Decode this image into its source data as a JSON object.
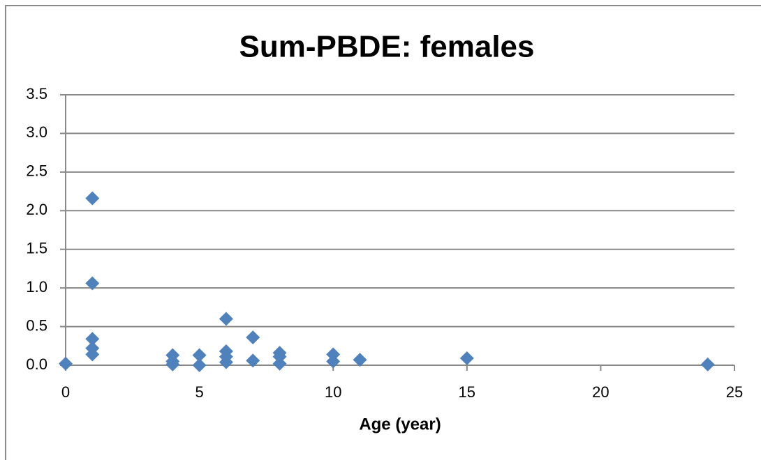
{
  "chart_data": {
    "type": "scatter",
    "title": "Sum-PBDE: females",
    "x_label": "Age (year)",
    "color": "#4f81bd",
    "grid": true,
    "x": [
      0,
      1,
      1,
      1,
      1,
      1,
      4,
      4,
      4,
      5,
      5,
      6,
      6,
      6,
      6,
      7,
      7,
      8,
      8,
      8,
      10,
      10,
      11,
      15,
      24
    ],
    "values": [
      0.02,
      2.16,
      1.06,
      0.34,
      0.22,
      0.14,
      0.13,
      0.05,
      0.01,
      0.13,
      0.0,
      0.6,
      0.18,
      0.11,
      0.04,
      0.36,
      0.06,
      0.16,
      0.11,
      0.02,
      0.14,
      0.05,
      0.07,
      0.09,
      0.01
    ],
    "xlim": [
      0,
      25
    ],
    "xticks": [
      0,
      5,
      10,
      15,
      20,
      25
    ],
    "ylim": [
      0,
      3.5
    ],
    "yticks": [
      {
        "value": 0,
        "label": "0.0"
      },
      {
        "value": 0.5,
        "label": "0.5"
      },
      {
        "value": 1,
        "label": "1.0"
      },
      {
        "value": 1.5,
        "label": "1.5"
      },
      {
        "value": 2,
        "label": "2.0"
      },
      {
        "value": 2.5,
        "label": "2.5"
      },
      {
        "value": 3,
        "label": "3.0"
      },
      {
        "value": 3.5,
        "label": "3.5"
      }
    ]
  }
}
